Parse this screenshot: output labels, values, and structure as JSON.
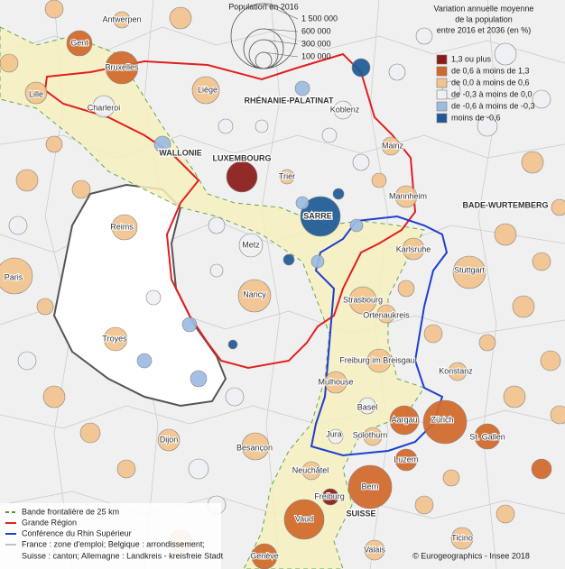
{
  "size_legend": {
    "title": "Population en 2016",
    "items": [
      "1 500 000",
      "600 000",
      "300 000",
      "100 000"
    ]
  },
  "color_legend": {
    "title_lines": [
      "Variation annuelle moyenne",
      "de la population",
      "entre 2016 et 2036 (en %)"
    ],
    "items": [
      {
        "label": "1,3 ou plus",
        "color": "#8b1a1a"
      },
      {
        "label": "de 0,6 à moins de 1,3",
        "color": "#d2692a"
      },
      {
        "label": "de 0,0 à moins de 0,6",
        "color": "#f3c48e"
      },
      {
        "label": "de -0,3 à moins de 0,0",
        "color": "#eef0f4"
      },
      {
        "label": "de -0,6 à moins de -0,3",
        "color": "#9dbbe3"
      },
      {
        "label": "moins de -0,6",
        "color": "#1d5a96"
      }
    ]
  },
  "line_legend": [
    "Bande frontalière de 25 km",
    "Grande Région",
    "Conférence du Rhin Supérieur",
    "France : zone d'emploi; Belgique : arrondissement;",
    "Suisse : canton; Allemagne : Landkreis - kreisfreie Stadt"
  ],
  "places": [
    "Antwerpen",
    "Gent",
    "Bruxelles",
    "Lille",
    "Charleroi",
    "Liège",
    "Koblenz",
    "Mainz",
    "Trier",
    "Mannheim",
    "Reims",
    "Karlsruhe",
    "Metz",
    "Paris",
    "Stuttgart",
    "Nancy",
    "Strasbourg",
    "Ortenaukreis",
    "Troyes",
    "Freiburg im Breisgau",
    "Konstanz",
    "Mulhouse",
    "Basel",
    "Aargau",
    "Zürich",
    "Jura",
    "Solothurn",
    "St. Gallen",
    "Dijon",
    "Besançon",
    "Luzern",
    "Neuchâtel",
    "Bern",
    "Freiburg",
    "Vaud",
    "Valais",
    "Ticino",
    "Genève"
  ],
  "regions": [
    "RHÉNANIE-PALATINAT",
    "WALLONIE",
    "LUXEMBOURG",
    "SARRE",
    "BADE-WURTEMBERG",
    "SUISSE"
  ],
  "credit": "© Eurogeographics - Insee 2018"
}
